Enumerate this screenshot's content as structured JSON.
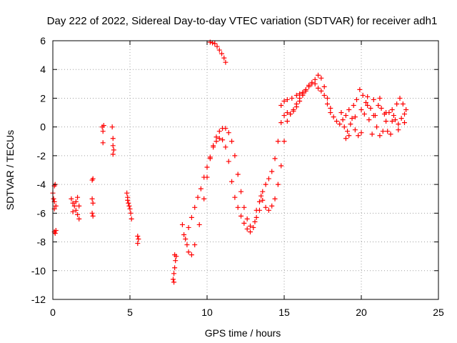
{
  "chart_data": {
    "type": "scatter",
    "title": "Day 222 of 2022, Sidereal Day-to-day VTEC variation (SDTVAR) for receiver adh1",
    "xlabel": "GPS time / hours",
    "ylabel": "SDTVAR / TECUs",
    "xlim": [
      0,
      25
    ],
    "ylim": [
      -12,
      6
    ],
    "xticks": [
      0,
      5,
      10,
      15,
      20,
      25
    ],
    "xtick_labels": [
      "0",
      "5",
      "10",
      "15",
      "20",
      "25"
    ],
    "yticks": [
      -12,
      -10,
      -8,
      -6,
      -4,
      -2,
      0,
      2,
      4,
      6
    ],
    "ytick_labels": [
      "-12",
      "-10",
      "-8",
      "-6",
      "-4",
      "-2",
      "0",
      "2",
      "4",
      "6"
    ],
    "grid": true,
    "marker": "+",
    "color": "#ff0000",
    "series": [
      {
        "name": "SDTVAR",
        "points": [
          [
            0.0,
            -4.6
          ],
          [
            0.05,
            -5.0
          ],
          [
            0.1,
            -5.2
          ],
          [
            0.1,
            -4.1
          ],
          [
            0.15,
            -4.0
          ],
          [
            0.2,
            -5.5
          ],
          [
            0.1,
            -5.7
          ],
          [
            0.1,
            -7.3
          ],
          [
            0.15,
            -7.4
          ],
          [
            0.2,
            -7.2
          ],
          [
            1.2,
            -5.0
          ],
          [
            1.3,
            -5.3
          ],
          [
            1.4,
            -5.5
          ],
          [
            1.5,
            -5.8
          ],
          [
            1.6,
            -6.1
          ],
          [
            1.7,
            -6.4
          ],
          [
            1.3,
            -5.9
          ],
          [
            1.5,
            -5.2
          ],
          [
            1.6,
            -4.9
          ],
          [
            1.7,
            -5.5
          ],
          [
            2.55,
            -3.7
          ],
          [
            2.6,
            -3.6
          ],
          [
            2.55,
            -5.0
          ],
          [
            2.6,
            -5.3
          ],
          [
            2.55,
            -6.0
          ],
          [
            2.6,
            -6.2
          ],
          [
            3.2,
            0.0
          ],
          [
            3.25,
            -0.3
          ],
          [
            3.3,
            0.1
          ],
          [
            3.25,
            -1.1
          ],
          [
            3.85,
            0.0
          ],
          [
            3.9,
            -0.8
          ],
          [
            3.9,
            -1.3
          ],
          [
            3.95,
            -1.6
          ],
          [
            3.9,
            -1.9
          ],
          [
            4.8,
            -4.6
          ],
          [
            4.85,
            -4.9
          ],
          [
            4.9,
            -5.3
          ],
          [
            5.0,
            -5.7
          ],
          [
            5.05,
            -6.0
          ],
          [
            5.1,
            -6.4
          ],
          [
            4.85,
            -5.1
          ],
          [
            4.95,
            -5.5
          ],
          [
            5.5,
            -7.6
          ],
          [
            5.55,
            -7.8
          ],
          [
            5.5,
            -8.1
          ],
          [
            7.8,
            -10.6
          ],
          [
            7.85,
            -10.2
          ],
          [
            7.9,
            -9.8
          ],
          [
            7.95,
            -9.3
          ],
          [
            8.0,
            -9.0
          ],
          [
            7.85,
            -10.8
          ],
          [
            7.9,
            -8.9
          ],
          [
            8.4,
            -6.8
          ],
          [
            8.5,
            -7.5
          ],
          [
            8.7,
            -8.2
          ],
          [
            8.8,
            -8.7
          ],
          [
            9.0,
            -8.9
          ],
          [
            9.2,
            -8.2
          ],
          [
            9.5,
            -6.8
          ],
          [
            9.8,
            -5.0
          ],
          [
            10.0,
            -3.5
          ],
          [
            10.2,
            -2.2
          ],
          [
            10.4,
            -1.4
          ],
          [
            10.6,
            -1.0
          ],
          [
            10.8,
            -0.8
          ],
          [
            11.0,
            -0.9
          ],
          [
            11.2,
            -1.4
          ],
          [
            11.4,
            -2.4
          ],
          [
            11.6,
            -3.8
          ],
          [
            11.8,
            -4.9
          ],
          [
            12.0,
            -5.6
          ],
          [
            12.2,
            -6.2
          ],
          [
            12.4,
            -6.7
          ],
          [
            12.6,
            -7.1
          ],
          [
            12.8,
            -7.3
          ],
          [
            8.6,
            -7.8
          ],
          [
            8.8,
            -7.0
          ],
          [
            9.0,
            -6.3
          ],
          [
            9.2,
            -5.6
          ],
          [
            9.4,
            -4.9
          ],
          [
            9.6,
            -4.3
          ],
          [
            9.8,
            -3.5
          ],
          [
            10.0,
            -2.8
          ],
          [
            10.2,
            -2.1
          ],
          [
            10.4,
            -1.3
          ],
          [
            10.6,
            -0.7
          ],
          [
            10.8,
            -0.3
          ],
          [
            11.0,
            -0.1
          ],
          [
            11.2,
            -0.1
          ],
          [
            11.4,
            -0.4
          ],
          [
            11.6,
            -1.0
          ],
          [
            11.8,
            -2.0
          ],
          [
            12.0,
            -3.3
          ],
          [
            12.2,
            -4.5
          ],
          [
            12.4,
            -5.6
          ],
          [
            12.6,
            -6.4
          ],
          [
            12.8,
            -6.9
          ],
          [
            10.2,
            5.9
          ],
          [
            10.35,
            5.85
          ],
          [
            10.5,
            5.8
          ],
          [
            10.65,
            5.6
          ],
          [
            10.8,
            5.35
          ],
          [
            10.95,
            5.1
          ],
          [
            11.1,
            4.8
          ],
          [
            11.2,
            4.5
          ],
          [
            13.0,
            -7.0
          ],
          [
            13.1,
            -6.6
          ],
          [
            13.2,
            -6.3
          ],
          [
            13.4,
            -5.8
          ],
          [
            13.5,
            -4.8
          ],
          [
            13.6,
            -5.1
          ],
          [
            13.8,
            -5.6
          ],
          [
            14.0,
            -5.8
          ],
          [
            14.2,
            -5.5
          ],
          [
            14.4,
            -5.0
          ],
          [
            14.6,
            -4.0
          ],
          [
            14.8,
            -2.7
          ],
          [
            15.0,
            -1.0
          ],
          [
            15.2,
            0.4
          ],
          [
            15.4,
            0.9
          ],
          [
            15.6,
            1.1
          ],
          [
            15.8,
            1.4
          ],
          [
            16.0,
            1.8
          ],
          [
            16.2,
            2.2
          ],
          [
            16.4,
            2.5
          ],
          [
            16.6,
            2.8
          ],
          [
            16.8,
            3.0
          ],
          [
            17.0,
            3.3
          ],
          [
            17.2,
            3.6
          ],
          [
            17.4,
            3.4
          ],
          [
            17.6,
            2.8
          ],
          [
            17.8,
            2.0
          ],
          [
            18.0,
            1.3
          ],
          [
            18.2,
            0.7
          ],
          [
            18.4,
            0.4
          ],
          [
            13.2,
            -5.8
          ],
          [
            13.4,
            -5.2
          ],
          [
            13.6,
            -4.5
          ],
          [
            13.8,
            -4.0
          ],
          [
            14.0,
            -3.6
          ],
          [
            14.2,
            -3.1
          ],
          [
            14.4,
            -2.2
          ],
          [
            14.6,
            -1.0
          ],
          [
            14.8,
            0.3
          ],
          [
            15.0,
            0.8
          ],
          [
            15.2,
            1.0
          ],
          [
            15.4,
            0.9
          ],
          [
            15.6,
            1.2
          ],
          [
            15.8,
            1.6
          ],
          [
            16.0,
            2.0
          ],
          [
            16.2,
            2.3
          ],
          [
            16.4,
            2.6
          ],
          [
            16.6,
            2.9
          ],
          [
            16.8,
            3.1
          ],
          [
            17.0,
            3.0
          ],
          [
            17.2,
            2.7
          ],
          [
            17.4,
            2.5
          ],
          [
            17.6,
            2.2
          ],
          [
            17.8,
            1.6
          ],
          [
            18.0,
            1.0
          ],
          [
            14.8,
            1.5
          ],
          [
            15.0,
            1.8
          ],
          [
            15.2,
            1.9
          ],
          [
            15.5,
            2.0
          ],
          [
            15.8,
            2.2
          ],
          [
            16.0,
            2.3
          ],
          [
            16.2,
            2.4
          ],
          [
            18.6,
            0.2
          ],
          [
            18.8,
            0.5
          ],
          [
            19.0,
            0.8
          ],
          [
            19.2,
            1.2
          ],
          [
            19.4,
            0.6
          ],
          [
            19.6,
            -0.2
          ],
          [
            19.8,
            -0.6
          ],
          [
            20.0,
            -0.4
          ],
          [
            20.2,
            0.9
          ],
          [
            20.4,
            2.1
          ],
          [
            20.6,
            1.3
          ],
          [
            20.8,
            0.8
          ],
          [
            21.0,
            0.0
          ],
          [
            21.2,
            -0.6
          ],
          [
            21.4,
            -0.3
          ],
          [
            21.6,
            0.4
          ],
          [
            21.8,
            1.0
          ],
          [
            22.0,
            1.2
          ],
          [
            22.2,
            0.5
          ],
          [
            22.4,
            0.2
          ],
          [
            22.6,
            0.6
          ],
          [
            22.8,
            0.9
          ],
          [
            18.7,
            1.0
          ],
          [
            18.9,
            0.0
          ],
          [
            19.1,
            -0.3
          ],
          [
            19.3,
            0.2
          ],
          [
            19.5,
            1.5
          ],
          [
            19.7,
            1.9
          ],
          [
            19.9,
            2.6
          ],
          [
            20.1,
            2.2
          ],
          [
            20.3,
            1.7
          ],
          [
            20.5,
            0.5
          ],
          [
            20.7,
            -0.5
          ],
          [
            20.9,
            0.8
          ],
          [
            21.1,
            1.5
          ],
          [
            21.3,
            1.3
          ],
          [
            21.5,
            0.9
          ],
          [
            21.7,
            -0.3
          ],
          [
            21.9,
            -0.5
          ],
          [
            22.1,
            0.8
          ],
          [
            22.3,
            1.6
          ],
          [
            22.5,
            2.0
          ],
          [
            22.7,
            1.6
          ],
          [
            22.9,
            1.2
          ],
          [
            19.0,
            -0.8
          ],
          [
            19.2,
            -0.6
          ],
          [
            19.6,
            0.7
          ],
          [
            20.0,
            1.2
          ],
          [
            20.4,
            1.5
          ],
          [
            20.8,
            1.9
          ],
          [
            21.2,
            2.0
          ],
          [
            21.6,
            1.0
          ],
          [
            22.0,
            0.4
          ],
          [
            22.4,
            -0.2
          ],
          [
            22.8,
            0.3
          ]
        ]
      }
    ]
  }
}
